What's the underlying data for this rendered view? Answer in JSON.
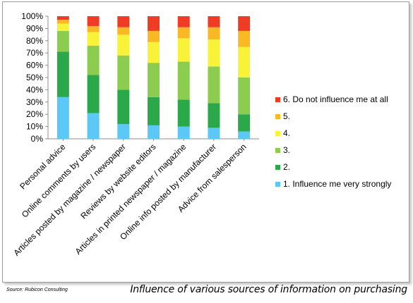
{
  "caption": "Influence of various sources of information on purchasing",
  "source": "Source: Rubicon Consulting",
  "chart_data": {
    "type": "bar",
    "stacked": true,
    "categories": [
      "Personal advice",
      "Online comments by users",
      "Articles posted by magazine / newspaper",
      "Reviews by website editors",
      "Articles in printed newspaper / magazine",
      "Online info posted by manufacturer",
      "Advice from salesperson"
    ],
    "series": [
      {
        "name": "1. Influence me very strongly",
        "color": "#5bc8f5",
        "values": [
          34,
          21,
          12,
          11,
          10,
          9,
          6
        ]
      },
      {
        "name": "2.",
        "color": "#2aa84a",
        "values": [
          37,
          31,
          28,
          23,
          22,
          20,
          14
        ]
      },
      {
        "name": "3.",
        "color": "#8ccd50",
        "values": [
          17,
          24,
          28,
          28,
          31,
          30,
          30
        ]
      },
      {
        "name": "4.",
        "color": "#f8f238",
        "values": [
          6,
          11,
          17,
          17,
          19,
          22,
          25
        ]
      },
      {
        "name": "5.",
        "color": "#fbb825",
        "values": [
          3,
          5,
          6,
          9,
          9,
          10,
          13
        ]
      },
      {
        "name": "6. Do not influence me at all",
        "color": "#f03c24",
        "values": [
          3,
          8,
          9,
          12,
          9,
          9,
          12
        ]
      }
    ],
    "y_ticks": [
      "0%",
      "10%",
      "20%",
      "30%",
      "40%",
      "50%",
      "60%",
      "70%",
      "80%",
      "90%",
      "100%"
    ],
    "ylim": [
      0,
      100
    ],
    "legend_position": "right",
    "grid": false
  }
}
